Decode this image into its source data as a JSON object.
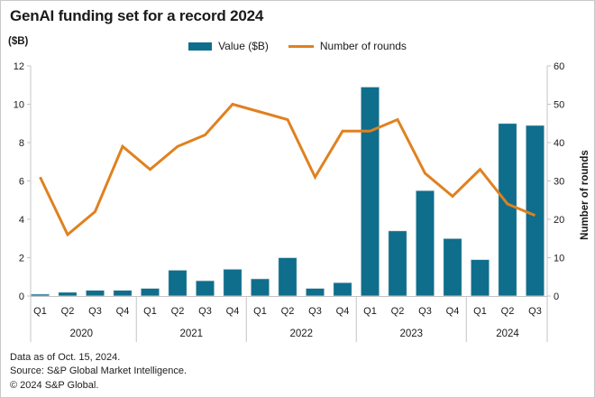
{
  "header": {
    "title": "GenAI funding set for a record 2024",
    "left_axis_unit": "($B)"
  },
  "legend": {
    "items": [
      {
        "label": "Value ($B)",
        "swatch": "bar-swatch"
      },
      {
        "label": "Number of rounds",
        "swatch": "line-swatch"
      }
    ]
  },
  "colors": {
    "bar": "#0e6e8c",
    "line": "#e0811f",
    "axis": "#c4c4c4",
    "text": "#1a1a1a"
  },
  "chart_data": {
    "type": "bar+line",
    "title": "GenAI funding set for a record 2024",
    "categories": [
      "Q1",
      "Q2",
      "Q3",
      "Q4",
      "Q1",
      "Q2",
      "Q3",
      "Q4",
      "Q1",
      "Q2",
      "Q3",
      "Q4",
      "Q1",
      "Q2",
      "Q3",
      "Q4",
      "Q1",
      "Q2",
      "Q3"
    ],
    "year_groups": [
      {
        "label": "2020",
        "count": 4
      },
      {
        "label": "2021",
        "count": 4
      },
      {
        "label": "2022",
        "count": 4
      },
      {
        "label": "2023",
        "count": 4
      },
      {
        "label": "2024",
        "count": 3
      }
    ],
    "series": [
      {
        "name": "Value ($B)",
        "type": "bar",
        "axis": "left",
        "values": [
          0.1,
          0.2,
          0.3,
          0.3,
          0.4,
          1.35,
          0.8,
          1.4,
          0.9,
          2.0,
          0.4,
          0.7,
          10.9,
          3.4,
          5.5,
          3.0,
          1.9,
          9.0,
          8.9
        ]
      },
      {
        "name": "Number of rounds",
        "type": "line",
        "axis": "right",
        "values": [
          31,
          16,
          22,
          39,
          33,
          39,
          42,
          50,
          48,
          46,
          31,
          43,
          43,
          46,
          32,
          26,
          33,
          24,
          21
        ]
      }
    ],
    "left_axis": {
      "label": "($B)",
      "range": [
        0,
        12
      ],
      "ticks": [
        0,
        2,
        4,
        6,
        8,
        10,
        12
      ]
    },
    "right_axis": {
      "label": "Number of rounds",
      "range": [
        0,
        60
      ],
      "ticks": [
        0,
        10,
        20,
        30,
        40,
        50,
        60
      ]
    },
    "grid": false,
    "legend_position": "top-center"
  },
  "footer": {
    "lines": [
      "Data as of Oct. 15, 2024.",
      "Source: S&P Global Market Intelligence.",
      "© 2024 S&P Global."
    ]
  }
}
